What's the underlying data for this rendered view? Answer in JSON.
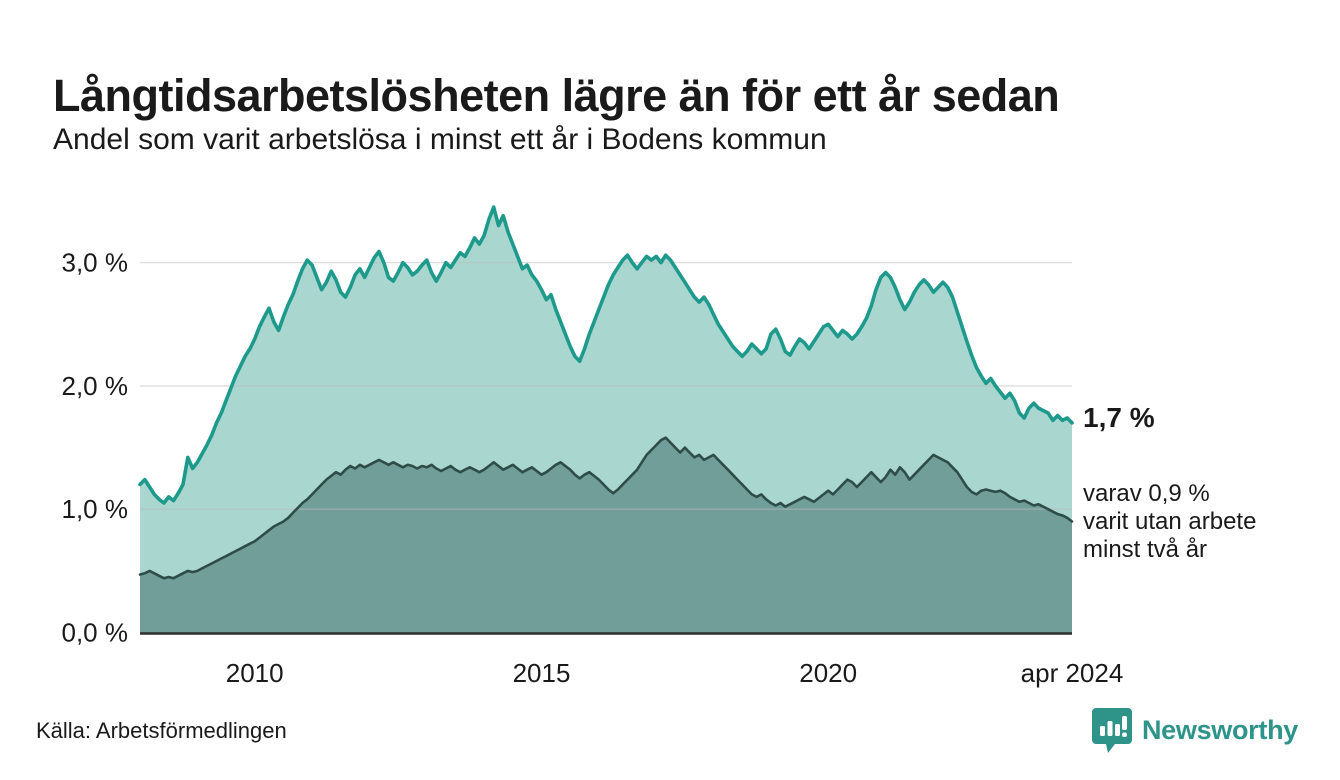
{
  "header": {
    "title": "Långtidsarbetslösheten lägre än för ett år sedan",
    "subtitle": "Andel som varit arbetslösa i minst ett år i Bodens kommun"
  },
  "annotations": {
    "latest_total": "1,7 %",
    "secondary_line1": "varav 0,9 %",
    "secondary_line2": "varit utan arbete",
    "secondary_line3": "minst två år"
  },
  "footer": {
    "source": "Källa: Arbetsförmedlingen",
    "brand": "Newsworthy"
  },
  "colors": {
    "total_line": "#1d9a8b",
    "total_fill": "#a9d6cf",
    "two_year_line": "#2e4d48",
    "two_year_fill": "#719e98",
    "gridline": "#bbbbbb",
    "axis_line": "#2e2e2e",
    "text": "#1a1a1a",
    "brand_teal": "#2e948a"
  },
  "chart_data": {
    "type": "area",
    "title": "Långtidsarbetslösheten lägre än för ett år sedan",
    "subtitle": "Andel som varit arbetslösa i minst ett år i Bodens kommun",
    "unit": "%",
    "x_frequency": "monthly",
    "x_start": "jan 2008",
    "x_end": "apr 2024",
    "ylim": [
      0,
      3.55
    ],
    "grid": "horizontal",
    "legend_position": "none",
    "y_ticks": [
      {
        "label": "0,0 %",
        "value": 0
      },
      {
        "label": "1,0 %",
        "value": 1
      },
      {
        "label": "2,0 %",
        "value": 2
      },
      {
        "label": "3,0 %",
        "value": 3
      }
    ],
    "x_ticks": [
      {
        "label": "2010",
        "month_index": 24
      },
      {
        "label": "2015",
        "month_index": 84
      },
      {
        "label": "2020",
        "month_index": 144
      },
      {
        "label": "apr 2024",
        "month_index": 195
      }
    ],
    "series": [
      {
        "name": "Andel som varit arbetslösa i minst ett år",
        "latest_label": "1,7 %",
        "values": [
          1.2,
          1.24,
          1.18,
          1.12,
          1.08,
          1.05,
          1.1,
          1.07,
          1.13,
          1.2,
          1.42,
          1.33,
          1.38,
          1.45,
          1.52,
          1.6,
          1.7,
          1.78,
          1.88,
          1.98,
          2.08,
          2.16,
          2.24,
          2.3,
          2.38,
          2.48,
          2.56,
          2.63,
          2.52,
          2.45,
          2.56,
          2.66,
          2.74,
          2.85,
          2.95,
          3.02,
          2.98,
          2.88,
          2.78,
          2.84,
          2.93,
          2.86,
          2.76,
          2.72,
          2.8,
          2.9,
          2.95,
          2.88,
          2.96,
          3.04,
          3.09,
          3.0,
          2.88,
          2.85,
          2.92,
          3.0,
          2.96,
          2.9,
          2.93,
          2.98,
          3.02,
          2.92,
          2.85,
          2.92,
          3.0,
          2.96,
          3.02,
          3.08,
          3.05,
          3.12,
          3.2,
          3.15,
          3.22,
          3.35,
          3.45,
          3.3,
          3.38,
          3.25,
          3.15,
          3.05,
          2.95,
          2.98,
          2.9,
          2.85,
          2.78,
          2.7,
          2.74,
          2.62,
          2.52,
          2.42,
          2.32,
          2.24,
          2.2,
          2.3,
          2.42,
          2.52,
          2.62,
          2.72,
          2.82,
          2.9,
          2.96,
          3.02,
          3.06,
          3.0,
          2.95,
          3.0,
          3.05,
          3.02,
          3.05,
          3.0,
          3.06,
          3.02,
          2.96,
          2.9,
          2.84,
          2.78,
          2.72,
          2.68,
          2.72,
          2.66,
          2.58,
          2.5,
          2.44,
          2.38,
          2.32,
          2.28,
          2.24,
          2.28,
          2.34,
          2.3,
          2.26,
          2.3,
          2.42,
          2.46,
          2.38,
          2.28,
          2.25,
          2.32,
          2.38,
          2.35,
          2.3,
          2.36,
          2.42,
          2.48,
          2.5,
          2.45,
          2.4,
          2.45,
          2.42,
          2.38,
          2.42,
          2.48,
          2.55,
          2.65,
          2.78,
          2.88,
          2.92,
          2.88,
          2.8,
          2.7,
          2.62,
          2.68,
          2.76,
          2.82,
          2.86,
          2.82,
          2.76,
          2.8,
          2.84,
          2.8,
          2.72,
          2.6,
          2.48,
          2.36,
          2.25,
          2.15,
          2.08,
          2.02,
          2.06,
          2.0,
          1.95,
          1.9,
          1.94,
          1.88,
          1.78,
          1.74,
          1.82,
          1.86,
          1.82,
          1.8,
          1.78,
          1.72,
          1.76,
          1.72,
          1.74,
          1.7
        ]
      },
      {
        "name": "varav utan arbete minst två år",
        "latest_label": "0,9 %",
        "values": [
          0.47,
          0.48,
          0.5,
          0.48,
          0.46,
          0.44,
          0.45,
          0.44,
          0.46,
          0.48,
          0.5,
          0.49,
          0.5,
          0.52,
          0.54,
          0.56,
          0.58,
          0.6,
          0.62,
          0.64,
          0.66,
          0.68,
          0.7,
          0.72,
          0.74,
          0.77,
          0.8,
          0.83,
          0.86,
          0.88,
          0.9,
          0.93,
          0.97,
          1.01,
          1.05,
          1.08,
          1.12,
          1.16,
          1.2,
          1.24,
          1.27,
          1.3,
          1.28,
          1.32,
          1.35,
          1.33,
          1.36,
          1.34,
          1.36,
          1.38,
          1.4,
          1.38,
          1.36,
          1.38,
          1.36,
          1.34,
          1.36,
          1.35,
          1.33,
          1.35,
          1.34,
          1.36,
          1.33,
          1.31,
          1.33,
          1.35,
          1.32,
          1.3,
          1.32,
          1.34,
          1.32,
          1.3,
          1.32,
          1.35,
          1.38,
          1.35,
          1.32,
          1.34,
          1.36,
          1.33,
          1.3,
          1.32,
          1.34,
          1.31,
          1.28,
          1.3,
          1.33,
          1.36,
          1.38,
          1.35,
          1.32,
          1.28,
          1.25,
          1.28,
          1.3,
          1.27,
          1.24,
          1.2,
          1.16,
          1.13,
          1.16,
          1.2,
          1.24,
          1.28,
          1.32,
          1.38,
          1.44,
          1.48,
          1.52,
          1.56,
          1.58,
          1.54,
          1.5,
          1.46,
          1.5,
          1.46,
          1.42,
          1.44,
          1.4,
          1.42,
          1.44,
          1.4,
          1.36,
          1.32,
          1.28,
          1.24,
          1.2,
          1.16,
          1.12,
          1.1,
          1.12,
          1.08,
          1.05,
          1.03,
          1.05,
          1.02,
          1.04,
          1.06,
          1.08,
          1.1,
          1.08,
          1.06,
          1.09,
          1.12,
          1.15,
          1.12,
          1.16,
          1.2,
          1.24,
          1.22,
          1.18,
          1.22,
          1.26,
          1.3,
          1.26,
          1.22,
          1.26,
          1.32,
          1.28,
          1.34,
          1.3,
          1.24,
          1.28,
          1.32,
          1.36,
          1.4,
          1.44,
          1.42,
          1.4,
          1.38,
          1.34,
          1.3,
          1.24,
          1.18,
          1.14,
          1.12,
          1.15,
          1.16,
          1.15,
          1.14,
          1.15,
          1.13,
          1.1,
          1.08,
          1.06,
          1.07,
          1.05,
          1.03,
          1.04,
          1.02,
          1.0,
          0.98,
          0.96,
          0.95,
          0.93,
          0.9
        ]
      }
    ]
  }
}
